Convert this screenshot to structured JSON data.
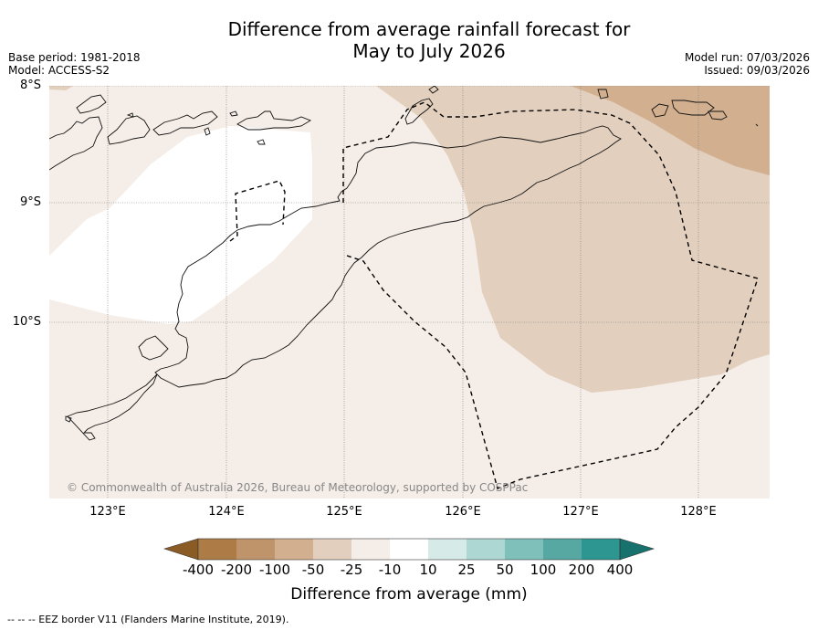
{
  "title": {
    "line1": "Difference from average rainfall forecast for",
    "line2": "May to July 2026"
  },
  "meta": {
    "base_period": "Base period: 1981-2018",
    "model": "Model: ACCESS-S2",
    "model_run": "Model run: 07/03/2026",
    "issued": "Issued: 09/03/2026"
  },
  "map": {
    "lat_labels": [
      "8°S",
      "9°S",
      "10°S"
    ],
    "lon_labels": [
      "123°E",
      "124°E",
      "125°E",
      "126°E",
      "127°E",
      "128°E"
    ],
    "copyright": "© Commonwealth of Australia 2026, Bureau of Meteorology, supported by COSPPac",
    "colors": {
      "neutral_dry": "#f5ede7",
      "wet_white": "#ffffff",
      "dry_minus50": "#e2cfbd",
      "dry_minus100": "#d2b08f",
      "coast": "#111111",
      "grid": "#777777"
    }
  },
  "colorbar": {
    "tick_labels": [
      "-400",
      "-200",
      "-100",
      "-50",
      "-25",
      "-10",
      "10",
      "25",
      "50",
      "100",
      "200",
      "400"
    ],
    "colors": [
      "#8b5b26",
      "#ad7b45",
      "#c0946a",
      "#d2b08f",
      "#e2cfbd",
      "#f5ede7",
      "#ffffff",
      "#d6ebe8",
      "#acd7d3",
      "#80c0bb",
      "#57a8a3",
      "#2e9690",
      "#17716c"
    ],
    "title": "Difference from average (mm)"
  },
  "footer": "--  --  -- EEZ border V11 (Flanders Marine Institute, 2019)."
}
